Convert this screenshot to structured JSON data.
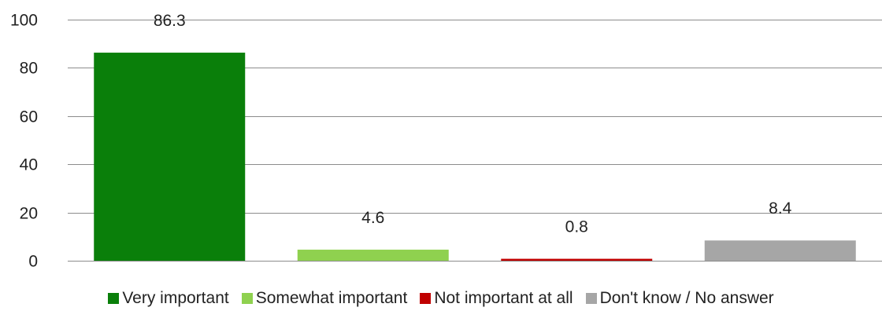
{
  "chart_data": {
    "type": "bar",
    "categories": [
      "Very important",
      "Somewhat important",
      "Not important at all",
      "Don't know / No answer"
    ],
    "values": [
      86.3,
      4.6,
      0.8,
      8.4
    ],
    "value_labels": [
      "86.3",
      "4.6",
      "0.8",
      "8.4"
    ],
    "colors": [
      "#0a7f0a",
      "#8fd14f",
      "#c00000",
      "#a6a6a6"
    ],
    "title": "",
    "xlabel": "",
    "ylabel": "",
    "ylim": [
      0,
      100
    ],
    "yticks": [
      0,
      20,
      40,
      60,
      80,
      100
    ],
    "grid": true,
    "legend_position": "bottom"
  }
}
